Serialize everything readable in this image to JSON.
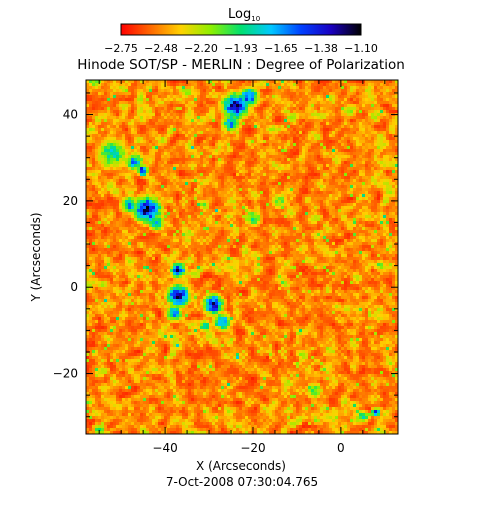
{
  "chart_data": {
    "type": "heatmap",
    "title": "Hinode SOT/SP - MERLIN : Degree of Polarization",
    "colorbar": {
      "label": "Log",
      "label_subscript": "10",
      "ticks": [
        "-2.75",
        "-2.48",
        "-2.20",
        "-1.93",
        "-1.65",
        "-1.38",
        "-1.10"
      ],
      "range": [
        -2.75,
        -1.1
      ],
      "colors": [
        "#ff0000",
        "#ff6a00",
        "#ffd200",
        "#8cf000",
        "#00e070",
        "#00c8ff",
        "#0040ff",
        "#1a00c0",
        "#000000"
      ]
    },
    "xlabel": "X (Arcseconds)",
    "ylabel": "Y (Arcseconds)",
    "xlim": [
      -58,
      13
    ],
    "ylim": [
      -34,
      48
    ],
    "x_ticks": [
      -40,
      -20,
      0
    ],
    "y_ticks": [
      -20,
      0,
      20,
      40
    ],
    "x_tick_labels": [
      "−40",
      "−20",
      "0"
    ],
    "y_tick_labels": [
      "−20",
      "0",
      "20",
      "40"
    ],
    "footer": "7-Oct-2008 07:30:04.765",
    "features": [
      {
        "x": -24,
        "y": 42,
        "level": 0.95,
        "radius": 3.0
      },
      {
        "x": -21,
        "y": 44,
        "level": 0.85,
        "radius": 2.2
      },
      {
        "x": -25,
        "y": 38,
        "level": 0.75,
        "radius": 2.0
      },
      {
        "x": -52,
        "y": 31,
        "level": 0.6,
        "radius": 3.5
      },
      {
        "x": -47,
        "y": 29,
        "level": 0.75,
        "radius": 2.0
      },
      {
        "x": -45,
        "y": 27,
        "level": 0.95,
        "radius": 1.2
      },
      {
        "x": -44,
        "y": 18,
        "level": 1.0,
        "radius": 3.0
      },
      {
        "x": -48,
        "y": 19,
        "level": 0.7,
        "radius": 2.0
      },
      {
        "x": -42,
        "y": 15,
        "level": 0.7,
        "radius": 1.8
      },
      {
        "x": -37,
        "y": 4,
        "level": 0.9,
        "radius": 1.8
      },
      {
        "x": -37,
        "y": -2,
        "level": 1.0,
        "radius": 2.5
      },
      {
        "x": -38,
        "y": -6,
        "level": 0.8,
        "radius": 1.8
      },
      {
        "x": -29,
        "y": -4,
        "level": 1.0,
        "radius": 2.2
      },
      {
        "x": -27,
        "y": -8,
        "level": 0.75,
        "radius": 2.0
      },
      {
        "x": -31,
        "y": -9,
        "level": 0.6,
        "radius": 1.5
      },
      {
        "x": -20,
        "y": 16,
        "level": 0.55,
        "radius": 2.0
      },
      {
        "x": -14,
        "y": 20,
        "level": 0.45,
        "radius": 2.0
      },
      {
        "x": -6,
        "y": -24,
        "level": 0.5,
        "radius": 2.0
      },
      {
        "x": 8,
        "y": -29,
        "level": 0.85,
        "radius": 1.0
      },
      {
        "x": 5,
        "y": -30,
        "level": 0.6,
        "radius": 1.5
      },
      {
        "x": -56,
        "y": 48,
        "level": 0.5,
        "radius": 2.0
      },
      {
        "x": -55,
        "y": -33,
        "level": 0.5,
        "radius": 1.5
      },
      {
        "x": 9,
        "y": 5,
        "level": 0.45,
        "radius": 1.5
      }
    ]
  }
}
